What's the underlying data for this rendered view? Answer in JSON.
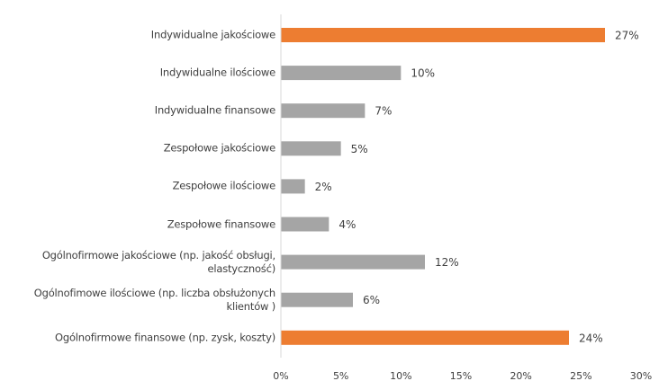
{
  "chart_data": {
    "type": "bar",
    "orientation": "horizontal",
    "categories": [
      "Indywidualne jakościowe",
      "Indywidualne ilościowe",
      "Indywidualne finansowe",
      "Zespołowe jakościowe",
      "Zespołowe ilościowe",
      "Zespołowe finansowe",
      "Ogólnofirmowe jakościowe (np. jakość obsługi, elastyczność)",
      "Ogólnofimowe ilościowe (np. liczba obsłużonych klientów )",
      "Ogólnofirmowe finansowe (np. zysk, koszty)"
    ],
    "values": [
      27,
      10,
      7,
      5,
      2,
      4,
      12,
      6,
      24
    ],
    "value_labels": [
      "27%",
      "10%",
      "7%",
      "5%",
      "2%",
      "4%",
      "12%",
      "6%",
      "24%"
    ],
    "bar_colors": [
      "#ED7D31",
      "#A5A5A5",
      "#A5A5A5",
      "#A5A5A5",
      "#A5A5A5",
      "#A5A5A5",
      "#A5A5A5",
      "#A5A5A5",
      "#ED7D31"
    ],
    "xlim": [
      0,
      30
    ],
    "xticks": [
      0,
      5,
      10,
      15,
      20,
      25,
      30
    ],
    "xtick_labels": [
      "0%",
      "5%",
      "10%",
      "15%",
      "20%",
      "25%",
      "30%"
    ],
    "axis_color": "#D9D9D9",
    "text_color": "#404040",
    "grid": false,
    "legend": "none"
  }
}
